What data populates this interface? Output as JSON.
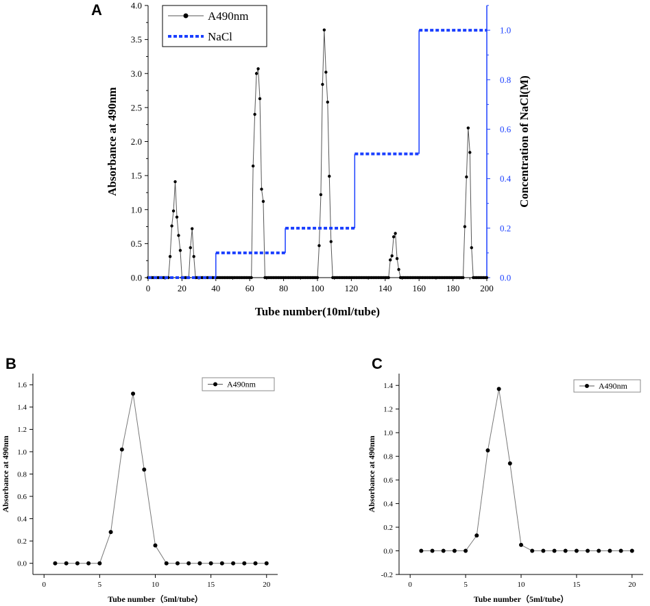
{
  "figure_title": "",
  "chart_data": [
    {
      "id": "A",
      "panel_label": "A",
      "type": "line",
      "xlabel": "Tube number(10ml/tube)",
      "ylabel": "Absorbance at 490nm",
      "y2label": "Concentration of NaCl(M)",
      "xlim": [
        0,
        200
      ],
      "ylim": [
        0,
        4.0
      ],
      "y2lim": [
        0,
        1.1
      ],
      "xticks": [
        "0",
        "20",
        "40",
        "60",
        "80",
        "100",
        "120",
        "140",
        "160",
        "180",
        "200"
      ],
      "yticks": [
        "0.0",
        "0.5",
        "1.0",
        "1.5",
        "2.0",
        "2.5",
        "3.0",
        "3.5",
        "4.0"
      ],
      "y2ticks": [
        "0.0",
        "0.2",
        "0.4",
        "0.6",
        "0.8",
        "1.0"
      ],
      "legend": [
        "A490nm",
        "NaCl"
      ],
      "legend_position": "top-left",
      "colors": {
        "absorbance": "#555555",
        "marker": "#000000",
        "nacl": "#1a3fff",
        "right_axis": "#1a3fff"
      },
      "series": [
        {
          "name": "A490nm",
          "style": "line-markers",
          "x": [
            1,
            12,
            13,
            14,
            15,
            16,
            17,
            18,
            19,
            20,
            21,
            24,
            25,
            26,
            27,
            28,
            60,
            61,
            62,
            63,
            64,
            65,
            66,
            67,
            68,
            69,
            70,
            99,
            100,
            101,
            102,
            103,
            104,
            105,
            106,
            107,
            108,
            109,
            110,
            141,
            142,
            143,
            144,
            145,
            146,
            147,
            148,
            149,
            185,
            186,
            187,
            188,
            189,
            190,
            191,
            192,
            193,
            200
          ],
          "y": [
            0,
            0,
            0.31,
            0.76,
            0.98,
            1.41,
            0.89,
            0.62,
            0.4,
            0,
            0,
            0,
            0.44,
            0.72,
            0.31,
            0,
            0,
            0,
            1.64,
            2.4,
            3.0,
            3.07,
            2.63,
            1.3,
            1.12,
            0,
            0,
            0,
            0,
            0.47,
            1.22,
            2.84,
            3.64,
            3.02,
            2.58,
            1.49,
            0.53,
            0,
            0,
            0,
            0,
            0.26,
            0.32,
            0.6,
            0.65,
            0.28,
            0.12,
            0,
            0,
            0,
            0.75,
            1.48,
            2.2,
            1.84,
            0.44,
            0,
            0,
            0
          ]
        },
        {
          "name": "NaCl",
          "style": "step-dashed",
          "axis": "right",
          "x": [
            0,
            40,
            40,
            81,
            81,
            122,
            122,
            160,
            160,
            200
          ],
          "y": [
            0,
            0,
            0.1,
            0.1,
            0.2,
            0.2,
            0.5,
            0.5,
            1.0,
            1.0
          ]
        }
      ]
    },
    {
      "id": "B",
      "panel_label": "B",
      "type": "line",
      "xlabel": "Tube number（5ml/tube）",
      "ylabel": "Absorbance at 490nm",
      "xlim": [
        -1,
        21
      ],
      "ylim": [
        -0.1,
        1.7
      ],
      "xticks": [
        "0",
        "5",
        "10",
        "15",
        "20"
      ],
      "yticks": [
        "0.0",
        "0.2",
        "0.4",
        "0.6",
        "0.8",
        "1.0",
        "1.2",
        "1.4",
        "1.6"
      ],
      "legend": [
        "A490nm"
      ],
      "legend_position": "top-right",
      "series": [
        {
          "name": "A490nm",
          "x": [
            1,
            2,
            3,
            4,
            5,
            6,
            7,
            8,
            9,
            10,
            11,
            12,
            13,
            14,
            15,
            16,
            17,
            18,
            19,
            20
          ],
          "y": [
            0,
            0,
            0,
            0,
            0,
            0.28,
            1.02,
            1.52,
            0.84,
            0.16,
            0,
            0,
            0,
            0,
            0,
            0,
            0,
            0,
            0,
            0
          ]
        }
      ]
    },
    {
      "id": "C",
      "panel_label": "C",
      "type": "line",
      "xlabel": "Tube number（5ml/tube）",
      "ylabel": "Absorbance at 490nm",
      "xlim": [
        -1,
        21
      ],
      "ylim": [
        -0.2,
        1.5
      ],
      "xticks": [
        "0",
        "5",
        "10",
        "15",
        "20"
      ],
      "yticks": [
        "-0.2",
        "0.0",
        "0.2",
        "0.4",
        "0.6",
        "0.8",
        "1.0",
        "1.2",
        "1.4"
      ],
      "legend": [
        "A490nm"
      ],
      "legend_position": "top-right",
      "series": [
        {
          "name": "A490nm",
          "x": [
            1,
            2,
            3,
            4,
            5,
            6,
            7,
            8,
            9,
            10,
            11,
            12,
            13,
            14,
            15,
            16,
            17,
            18,
            19,
            20
          ],
          "y": [
            0,
            0,
            0,
            0,
            0,
            0.13,
            0.85,
            1.37,
            0.74,
            0.05,
            0,
            0,
            0,
            0,
            0,
            0,
            0,
            0,
            0,
            0
          ]
        }
      ]
    }
  ]
}
